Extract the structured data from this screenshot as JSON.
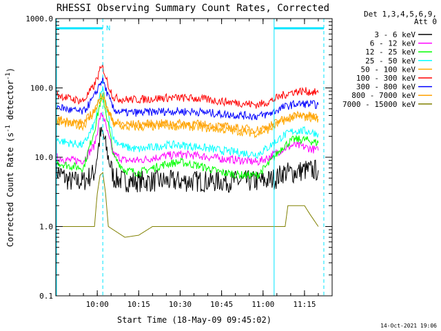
{
  "chart_data": {
    "type": "line",
    "title": "RHESSI Observing Summary Count Rates, Corrected",
    "xlabel": "Start Time (18-May-09 09:45:02)",
    "ylabel_parts": [
      "Corrected Count Rate (s",
      "-1",
      " detector",
      "-1",
      ")"
    ],
    "yscale": "log",
    "ylim": [
      0.1,
      1000
    ],
    "xlim_min": [
      0,
      100
    ],
    "y_ticks": [
      "0.1",
      "1.0",
      "10.0",
      "100.0",
      "1000.0"
    ],
    "x_ticks": [
      {
        "t": 15,
        "label": "10:00"
      },
      {
        "t": 30,
        "label": "10:15"
      },
      {
        "t": 45,
        "label": "10:30"
      },
      {
        "t": 60,
        "label": "10:45"
      },
      {
        "t": 75,
        "label": "11:00"
      },
      {
        "t": 90,
        "label": "11:15"
      }
    ],
    "legend_header": [
      "Det 1,3,4,5,6,9,",
      "Att 0"
    ],
    "legend_position": "right",
    "series": [
      {
        "name": "3 - 6 keV",
        "color": "#000000",
        "points": [
          [
            0,
            6.5
          ],
          [
            5,
            4.5
          ],
          [
            10,
            4.5
          ],
          [
            14,
            6
          ],
          [
            16,
            20
          ],
          [
            17,
            22
          ],
          [
            19,
            10
          ],
          [
            21,
            5
          ],
          [
            25,
            4.5
          ],
          [
            35,
            4.5
          ],
          [
            45,
            4.5
          ],
          [
            55,
            4.5
          ],
          [
            65,
            4.5
          ],
          [
            75,
            4.5
          ],
          [
            80,
            5
          ],
          [
            82,
            6
          ],
          [
            86,
            6
          ],
          [
            90,
            6.5
          ],
          [
            95,
            6.5
          ]
        ]
      },
      {
        "name": "6 - 12 keV",
        "color": "#ff00ff",
        "points": [
          [
            0,
            10
          ],
          [
            5,
            9
          ],
          [
            10,
            9
          ],
          [
            14,
            15
          ],
          [
            16,
            38
          ],
          [
            17,
            42
          ],
          [
            19,
            20
          ],
          [
            21,
            11
          ],
          [
            25,
            9
          ],
          [
            30,
            9
          ],
          [
            40,
            10.5
          ],
          [
            45,
            11
          ],
          [
            52,
            10.5
          ],
          [
            60,
            9.5
          ],
          [
            68,
            9
          ],
          [
            73,
            8.5
          ],
          [
            77,
            10
          ],
          [
            82,
            13
          ],
          [
            86,
            15
          ],
          [
            90,
            14
          ],
          [
            95,
            12.5
          ]
        ]
      },
      {
        "name": "12 - 25 keV",
        "color": "#00ff00",
        "points": [
          [
            0,
            8.5
          ],
          [
            5,
            7.5
          ],
          [
            10,
            7
          ],
          [
            14,
            25
          ],
          [
            16,
            60
          ],
          [
            17,
            75
          ],
          [
            19,
            30
          ],
          [
            21,
            10
          ],
          [
            25,
            6.5
          ],
          [
            30,
            6
          ],
          [
            40,
            8
          ],
          [
            45,
            8.5
          ],
          [
            52,
            7.5
          ],
          [
            60,
            6
          ],
          [
            68,
            5.5
          ],
          [
            73,
            5.5
          ],
          [
            77,
            8
          ],
          [
            82,
            14
          ],
          [
            86,
            18
          ],
          [
            90,
            18
          ],
          [
            95,
            16
          ]
        ]
      },
      {
        "name": "25 - 50 keV",
        "color": "#00ffff",
        "points": [
          [
            0,
            18
          ],
          [
            5,
            16
          ],
          [
            10,
            15
          ],
          [
            14,
            30
          ],
          [
            16,
            80
          ],
          [
            17,
            95
          ],
          [
            19,
            40
          ],
          [
            21,
            18
          ],
          [
            25,
            14
          ],
          [
            30,
            13
          ],
          [
            40,
            15
          ],
          [
            45,
            15
          ],
          [
            52,
            14
          ],
          [
            60,
            12.5
          ],
          [
            68,
            11.5
          ],
          [
            73,
            11
          ],
          [
            77,
            14
          ],
          [
            82,
            20
          ],
          [
            86,
            24
          ],
          [
            90,
            24
          ],
          [
            95,
            22
          ]
        ]
      },
      {
        "name": "50 - 100 keV",
        "color": "#ffaa00",
        "points": [
          [
            0,
            32
          ],
          [
            5,
            30
          ],
          [
            10,
            28
          ],
          [
            14,
            45
          ],
          [
            16,
            72
          ],
          [
            17,
            80
          ],
          [
            19,
            45
          ],
          [
            21,
            30
          ],
          [
            25,
            27
          ],
          [
            30,
            27
          ],
          [
            40,
            28
          ],
          [
            45,
            28
          ],
          [
            52,
            27
          ],
          [
            60,
            25
          ],
          [
            68,
            23
          ],
          [
            73,
            22
          ],
          [
            77,
            25
          ],
          [
            82,
            33
          ],
          [
            86,
            38
          ],
          [
            90,
            38
          ],
          [
            95,
            36
          ]
        ]
      },
      {
        "name": "100 - 300 keV",
        "color": "#ff0000",
        "points": [
          [
            0,
            82
          ],
          [
            5,
            70
          ],
          [
            10,
            65
          ],
          [
            14,
            110
          ],
          [
            16,
            180
          ],
          [
            17,
            200
          ],
          [
            19,
            110
          ],
          [
            21,
            72
          ],
          [
            25,
            68
          ],
          [
            30,
            68
          ],
          [
            40,
            72
          ],
          [
            45,
            72
          ],
          [
            52,
            70
          ],
          [
            60,
            64
          ],
          [
            68,
            60
          ],
          [
            73,
            57
          ],
          [
            77,
            63
          ],
          [
            82,
            78
          ],
          [
            86,
            88
          ],
          [
            90,
            90
          ],
          [
            95,
            85
          ]
        ]
      },
      {
        "name": "300 - 800 keV",
        "color": "#0000ff",
        "points": [
          [
            0,
            55
          ],
          [
            5,
            48
          ],
          [
            10,
            45
          ],
          [
            14,
            75
          ],
          [
            16,
            118
          ],
          [
            17,
            130
          ],
          [
            19,
            75
          ],
          [
            21,
            48
          ],
          [
            25,
            44
          ],
          [
            30,
            44
          ],
          [
            40,
            46
          ],
          [
            45,
            46
          ],
          [
            52,
            45
          ],
          [
            60,
            42
          ],
          [
            68,
            40
          ],
          [
            73,
            39
          ],
          [
            77,
            42
          ],
          [
            82,
            52
          ],
          [
            86,
            58
          ],
          [
            90,
            59
          ],
          [
            95,
            57
          ]
        ]
      },
      {
        "name": "800 - 7000 keV",
        "color": "#ffa000",
        "points": [
          [
            0,
            36
          ],
          [
            5,
            33
          ],
          [
            10,
            31
          ],
          [
            14,
            48
          ],
          [
            16,
            70
          ],
          [
            17,
            75
          ],
          [
            19,
            45
          ],
          [
            21,
            32
          ],
          [
            25,
            30
          ],
          [
            30,
            30
          ],
          [
            40,
            31
          ],
          [
            45,
            31
          ],
          [
            52,
            30
          ],
          [
            60,
            28
          ],
          [
            68,
            26
          ],
          [
            73,
            25
          ],
          [
            77,
            28
          ],
          [
            82,
            35
          ],
          [
            86,
            40
          ],
          [
            90,
            41
          ],
          [
            95,
            38
          ]
        ]
      },
      {
        "name": "7000 - 15000 keV",
        "color": "#808000",
        "points": [
          [
            0,
            1
          ],
          [
            3,
            1
          ],
          [
            14,
            1
          ],
          [
            15,
            3
          ],
          [
            16,
            5.5
          ],
          [
            17,
            6
          ],
          [
            18,
            3
          ],
          [
            19,
            1
          ],
          [
            25,
            0.7
          ],
          [
            30,
            0.75
          ],
          [
            35,
            1
          ],
          [
            45,
            1
          ],
          [
            55,
            1
          ],
          [
            65,
            1
          ],
          [
            75,
            1
          ],
          [
            83,
            1
          ],
          [
            84,
            2
          ],
          [
            88,
            2
          ],
          [
            90,
            2
          ],
          [
            92,
            1.5
          ],
          [
            95,
            1
          ]
        ]
      }
    ]
  },
  "footer_timestamp": "14-Oct-2021 19:06",
  "marker_label": "N",
  "night_markers": [
    {
      "t0": 0,
      "t1": 17
    },
    {
      "t0": 79,
      "t1": 97
    }
  ]
}
